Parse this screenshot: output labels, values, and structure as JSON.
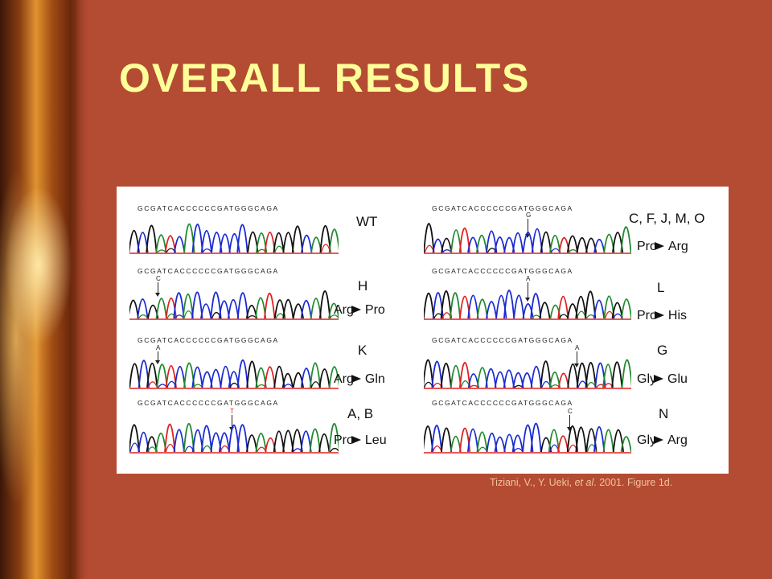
{
  "slide": {
    "title": "OVERALL RESULTS",
    "citation": {
      "authors": "Tiziani, V., Y. Ueki, ",
      "et_al": "et al",
      "rest": ". 2001. Figure 1d."
    }
  },
  "figure": {
    "sequence": "GCGATCACCCCCCGATGGGCAGA",
    "trace_colors": {
      "G": "#111111",
      "C": "#1a2bd1",
      "A": "#1f8a2e",
      "T": "#e02020"
    },
    "panels": [
      {
        "id": "WT",
        "mutation_from": "",
        "mutation_to": "",
        "marker": ""
      },
      {
        "id": "H",
        "mutation_from": "Arg",
        "mutation_to": "Pro",
        "marker": "C"
      },
      {
        "id": "K",
        "mutation_from": "Arg",
        "mutation_to": "Gln",
        "marker": "A"
      },
      {
        "id": "A, B",
        "mutation_from": "Pro",
        "mutation_to": "Leu",
        "marker": "T"
      },
      {
        "id": "C, F, J, M, O",
        "mutation_from": "Pro",
        "mutation_to": "Arg",
        "marker": "G"
      },
      {
        "id": "L",
        "mutation_from": "Pro",
        "mutation_to": "His",
        "marker": "A"
      },
      {
        "id": "G",
        "mutation_from": "Gly",
        "mutation_to": "Glu",
        "marker": "A"
      },
      {
        "id": "N",
        "mutation_from": "Gly",
        "mutation_to": "Arg",
        "marker": "C"
      }
    ]
  }
}
